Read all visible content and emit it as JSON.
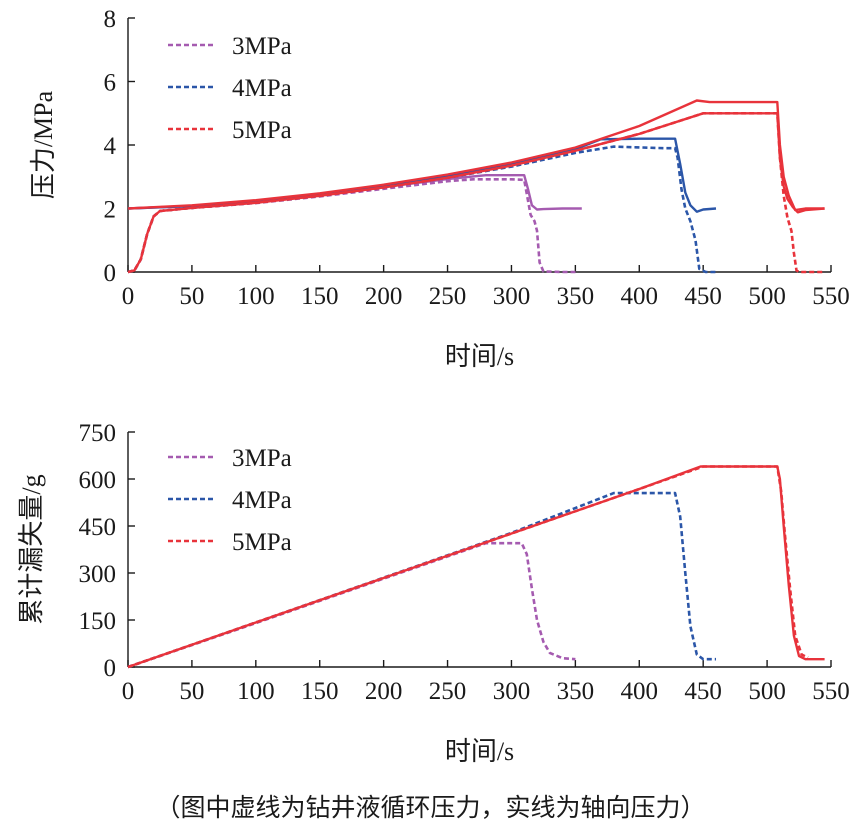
{
  "figure": {
    "caption": "（图中虚线为钻井液循环压力，实线为轴向压力）"
  },
  "chart_data": [
    {
      "type": "line",
      "xlabel": "时间/s",
      "ylabel": "压力/MPa",
      "xlim": [
        0,
        550
      ],
      "ylim": [
        0,
        8
      ],
      "xticks": [
        0,
        50,
        100,
        150,
        200,
        250,
        300,
        350,
        400,
        450,
        500,
        550
      ],
      "yticks": [
        0,
        2,
        4,
        6,
        8
      ],
      "legend": "top-left",
      "series": [
        {
          "name": "3MPa",
          "color": "#a55bb0",
          "style": "dashed",
          "x": [
            0,
            5,
            10,
            15,
            20,
            25,
            50,
            100,
            150,
            200,
            250,
            270,
            300,
            310,
            315,
            318,
            320,
            322,
            325,
            340,
            352
          ],
          "y": [
            0,
            0.05,
            0.4,
            1.2,
            1.75,
            1.92,
            2.02,
            2.17,
            2.38,
            2.62,
            2.86,
            2.92,
            2.92,
            2.9,
            1.8,
            1.6,
            1.3,
            0.3,
            0.02,
            0.0,
            0.0
          ]
        },
        {
          "name": "",
          "color": "#a55bb0",
          "style": "solid",
          "x": [
            0,
            50,
            100,
            150,
            200,
            250,
            280,
            300,
            310,
            313,
            316,
            320,
            325,
            340,
            355
          ],
          "y": [
            2.0,
            2.08,
            2.23,
            2.43,
            2.67,
            2.93,
            3.05,
            3.05,
            3.05,
            2.6,
            2.1,
            1.97,
            1.98,
            2.0,
            2.0
          ]
        },
        {
          "name": "4MPa",
          "color": "#2b56a8",
          "style": "dashed",
          "x": [
            0,
            5,
            10,
            15,
            20,
            25,
            50,
            100,
            150,
            200,
            250,
            300,
            350,
            380,
            420,
            428,
            430,
            433,
            436,
            440,
            444,
            447,
            452,
            460
          ],
          "y": [
            0,
            0.05,
            0.4,
            1.2,
            1.75,
            1.92,
            2.02,
            2.18,
            2.4,
            2.66,
            2.97,
            3.32,
            3.75,
            3.95,
            3.9,
            3.9,
            3.6,
            2.6,
            2.0,
            1.6,
            1.0,
            0.1,
            0.0,
            0.0
          ]
        },
        {
          "name": "",
          "color": "#2b56a8",
          "style": "solid",
          "x": [
            0,
            50,
            100,
            150,
            200,
            250,
            300,
            350,
            370,
            400,
            428,
            432,
            436,
            440,
            445,
            450,
            460
          ],
          "y": [
            2.0,
            2.08,
            2.23,
            2.45,
            2.72,
            3.03,
            3.4,
            3.87,
            4.18,
            4.2,
            4.2,
            3.4,
            2.5,
            2.1,
            1.9,
            1.97,
            2.0
          ]
        },
        {
          "name": "5MPa",
          "color": "#e8333b",
          "style": "dashed",
          "x": [
            0,
            5,
            10,
            15,
            20,
            25,
            50,
            100,
            150,
            200,
            250,
            300,
            350,
            400,
            450,
            500,
            508,
            510,
            513,
            516,
            519,
            521,
            523,
            525,
            545
          ],
          "y": [
            0,
            0.05,
            0.4,
            1.2,
            1.75,
            1.92,
            2.02,
            2.18,
            2.4,
            2.66,
            2.97,
            3.35,
            3.82,
            4.35,
            5.0,
            5.0,
            5.0,
            3.6,
            2.4,
            1.7,
            1.3,
            0.6,
            0.05,
            0.0,
            0.0
          ]
        },
        {
          "name": "",
          "color": "#e8333b",
          "style": "solid",
          "x": [
            0,
            5,
            10,
            15,
            20,
            25,
            50,
            100,
            150,
            200,
            250,
            300,
            350,
            400,
            450,
            508,
            510,
            513,
            516,
            520,
            524,
            530,
            545
          ],
          "y": [
            0,
            0.05,
            0.4,
            1.2,
            1.75,
            1.92,
            2.02,
            2.18,
            2.4,
            2.66,
            2.97,
            3.35,
            3.82,
            4.35,
            5.0,
            5.0,
            3.6,
            2.7,
            2.3,
            2.05,
            1.88,
            1.95,
            2.0
          ]
        },
        {
          "name": "",
          "color": "#e8333b",
          "style": "solid",
          "x": [
            0,
            50,
            100,
            150,
            200,
            250,
            300,
            350,
            400,
            445,
            455,
            508,
            510,
            513,
            517,
            522,
            530,
            545
          ],
          "y": [
            2.0,
            2.1,
            2.26,
            2.48,
            2.75,
            3.07,
            3.45,
            3.92,
            4.6,
            5.4,
            5.35,
            5.35,
            4.0,
            3.0,
            2.4,
            1.95,
            2.0,
            2.0
          ]
        }
      ]
    },
    {
      "type": "line",
      "xlabel": "时间/s",
      "ylabel": "累计漏失量/g",
      "xlim": [
        0,
        550
      ],
      "ylim": [
        0,
        750
      ],
      "xticks": [
        0,
        50,
        100,
        150,
        200,
        250,
        300,
        350,
        400,
        450,
        500,
        550
      ],
      "yticks": [
        0,
        150,
        300,
        450,
        600,
        750
      ],
      "legend": "top-left",
      "series": [
        {
          "name": "3MPa",
          "color": "#a55bb0",
          "style": "dashed",
          "x": [
            0,
            100,
            200,
            280,
            308,
            312,
            316,
            320,
            325,
            330,
            340,
            350
          ],
          "y": [
            0,
            140,
            282,
            395,
            395,
            360,
            250,
            150,
            80,
            45,
            28,
            25
          ]
        },
        {
          "name": "4MPa",
          "color": "#2b56a8",
          "style": "dashed",
          "x": [
            0,
            100,
            200,
            300,
            380,
            428,
            432,
            436,
            440,
            445,
            450,
            460
          ],
          "y": [
            0,
            142,
            285,
            428,
            555,
            555,
            480,
            300,
            130,
            40,
            25,
            25
          ]
        },
        {
          "name": "5MPa",
          "color": "#e8333b",
          "style": "dashed",
          "x": [
            0,
            100,
            200,
            300,
            400,
            450,
            508,
            511,
            514,
            518,
            522,
            527,
            532
          ],
          "y": [
            0,
            142,
            284,
            426,
            568,
            640,
            640,
            560,
            420,
            250,
            100,
            40,
            30
          ]
        },
        {
          "name": "",
          "color": "#e8333b",
          "style": "solid",
          "x": [
            0,
            100,
            200,
            300,
            400,
            448,
            508,
            510,
            513,
            517,
            521,
            525,
            530,
            545
          ],
          "y": [
            0,
            142,
            284,
            426,
            568,
            640,
            640,
            600,
            450,
            260,
            100,
            35,
            25,
            25
          ]
        }
      ]
    }
  ]
}
